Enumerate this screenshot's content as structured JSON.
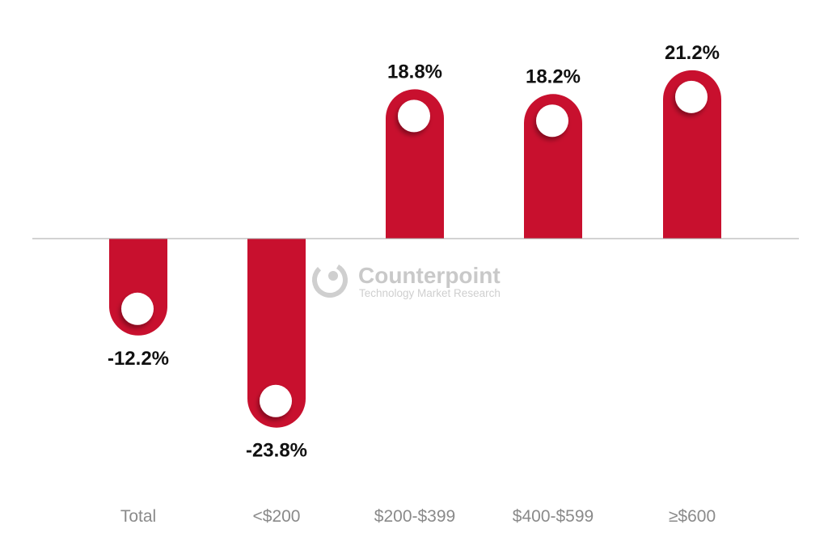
{
  "chart_data": {
    "type": "bar",
    "categories": [
      "Total",
      "<$200",
      "$200-$399",
      "$400-$599",
      "≥$600"
    ],
    "values": [
      -12.2,
      -23.8,
      18.8,
      18.2,
      21.2
    ],
    "value_labels": [
      "-12.2%",
      "-23.8%",
      "18.8%",
      "18.2%",
      "21.2%"
    ],
    "unit": "%",
    "ylim": [
      -25,
      23
    ],
    "grid": false,
    "bar_color": "#c8102e",
    "marker_color": "#ffffff",
    "axis_color": "#a6a6a6"
  },
  "watermark": {
    "name": "Counterpoint",
    "tagline": "Technology Market Research",
    "icon": "counterpoint-logo-icon",
    "color": "#c9c9c9"
  }
}
